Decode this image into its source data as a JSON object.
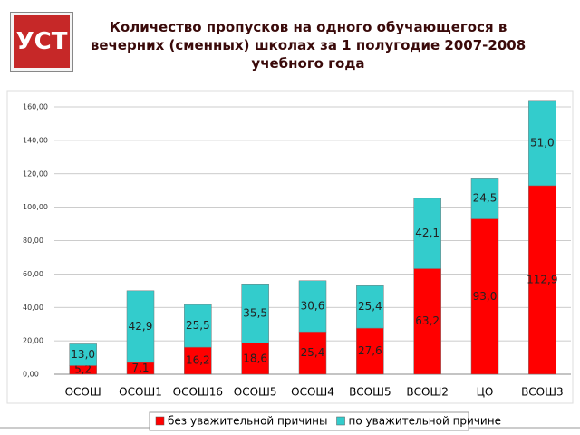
{
  "logo": "УСТ",
  "chart_data": {
    "type": "stacked_bar",
    "title": "Количество пропусков на одного обучающегося в вечерних (сменных) школах за 1 полугодие 2007-2008 учебного года",
    "categories": [
      "ОСОШ",
      "ОСОШ1",
      "ОСОШ16",
      "ОСОШ5",
      "ОСОШ4",
      "ВСОШ5",
      "ВСОШ2",
      "ЦО",
      "ВСОШ3"
    ],
    "series": [
      {
        "name": "без уважительной причины",
        "color": "#ff0000",
        "values": [
          5.2,
          7.1,
          16.2,
          18.6,
          25.4,
          27.6,
          63.2,
          93.0,
          112.9
        ],
        "value_labels": [
          "5,2",
          "7,1",
          "16,2",
          "18,6",
          "25,4",
          "27,6",
          "63,2",
          "93,0",
          "112,9"
        ]
      },
      {
        "name": "по уважительной причине",
        "color": "#33cccc",
        "values": [
          13.0,
          42.9,
          25.5,
          35.5,
          30.6,
          25.4,
          42.1,
          24.5,
          51.0
        ],
        "value_labels": [
          "13,0",
          "42,9",
          "25,5",
          "35,5",
          "30,6",
          "25,4",
          "42,1",
          "24,5",
          "51,0"
        ]
      }
    ],
    "ylim": [
      0,
      160
    ],
    "yticks": [
      {
        "value": 0,
        "label": "0,00"
      },
      {
        "value": 20,
        "label": "20,00"
      },
      {
        "value": 40,
        "label": "40,00"
      },
      {
        "value": 60,
        "label": "60,00"
      },
      {
        "value": 80,
        "label": "80,00"
      },
      {
        "value": 100,
        "label": "100,00"
      },
      {
        "value": 120,
        "label": "120,00"
      },
      {
        "value": 140,
        "label": "140,00"
      },
      {
        "value": 160,
        "label": "160,00"
      }
    ],
    "grid": true,
    "legend": "bottom"
  }
}
